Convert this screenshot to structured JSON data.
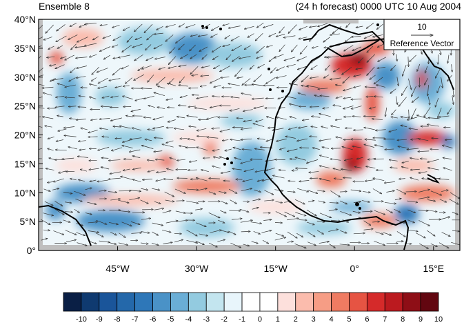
{
  "title_left": "Ensemble 8",
  "title_right": "(24 h forecast) 0000 UTC 10 Aug 2004",
  "y_axis": {
    "ticks": [
      "0°",
      "5°N",
      "10°N",
      "15°N",
      "20°N",
      "25°N",
      "30°N",
      "35°N",
      "40°N"
    ],
    "values": [
      0,
      5,
      10,
      15,
      20,
      25,
      30,
      35,
      40
    ]
  },
  "x_axis": {
    "ticks": [
      "45°W",
      "30°W",
      "15°W",
      "0°",
      "15°E"
    ],
    "values": [
      -45,
      -30,
      -15,
      0,
      15
    ]
  },
  "map_extent": {
    "lon": [
      -60,
      20
    ],
    "lat": [
      0,
      40
    ]
  },
  "reference_vector": {
    "magnitude_label": "10",
    "caption": "Reference Vector"
  },
  "colorbar": {
    "labels": [
      "-10",
      "-9",
      "-8",
      "-7",
      "-6",
      "-5",
      "-4",
      "-3",
      "-2",
      "-1",
      "0",
      "1",
      "2",
      "3",
      "4",
      "5",
      "6",
      "7",
      "8",
      "9",
      "10"
    ],
    "colors": [
      "#0a1f45",
      "#0f3a70",
      "#1a559a",
      "#2468aa",
      "#2e77b8",
      "#4a92c7",
      "#6aaed6",
      "#93cbe0",
      "#c3e5ef",
      "#e8f5fb",
      "#ffffff",
      "#ffffff",
      "#fde0dc",
      "#fbbcad",
      "#f69d85",
      "#ef7b62",
      "#e65443",
      "#d52a2a",
      "#bb1a1f",
      "#8e0e16",
      "#620610"
    ]
  },
  "colors": {
    "land_outline": "#000000",
    "missing_data": "#bfbfbf",
    "vector": "#333333"
  }
}
